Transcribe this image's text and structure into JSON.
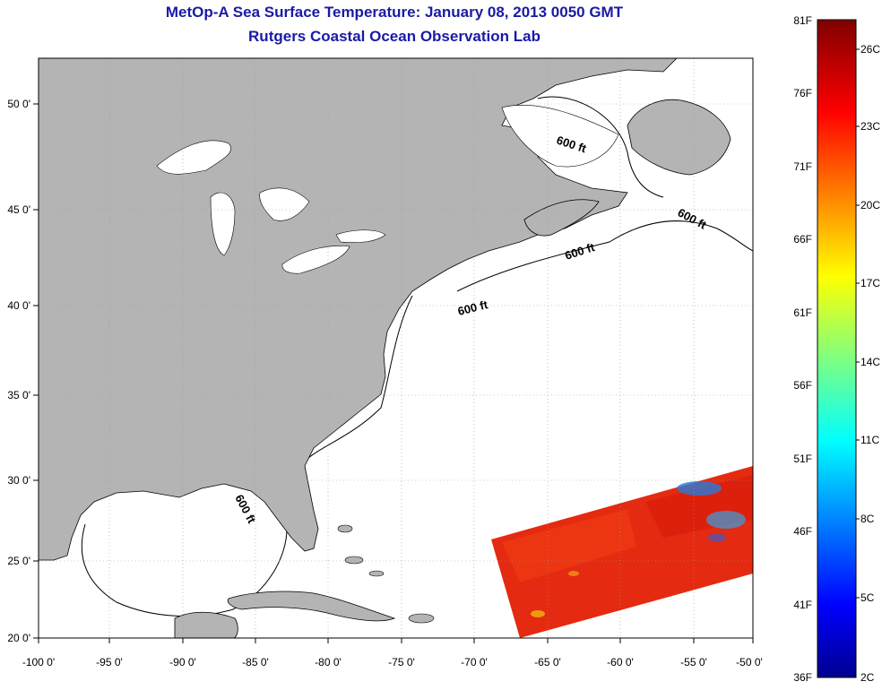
{
  "title": {
    "line1": "MetOp-A Sea Surface Temperature:  January 08, 2013 0050 GMT",
    "line2": "Rutgers Coastal Ocean Observation Lab"
  },
  "map": {
    "lon_labels": [
      "-100 0'",
      "-95 0'",
      "-90 0'",
      "-85 0'",
      "-80 0'",
      "-75 0'",
      "-70 0'",
      "-65 0'",
      "-60 0'",
      "-55 0'",
      "-50 0'"
    ],
    "lat_labels": [
      "50 0'",
      "45 0'",
      "40 0'",
      "35 0'",
      "30 0'",
      "25 0'",
      "20 0'"
    ],
    "isobath_label": "600 ft",
    "land_color": "#b4b4b4",
    "ocean_color": "#ffffff"
  },
  "colorbar": {
    "f_labels": [
      "81F",
      "76F",
      "71F",
      "66F",
      "61F",
      "56F",
      "51F",
      "46F",
      "41F",
      "36F"
    ],
    "c_labels": [
      "26C",
      "23C",
      "20C",
      "17C",
      "14C",
      "11C",
      "8C",
      "5C",
      "2C"
    ],
    "colormap": [
      "#00008f",
      "#0000ff",
      "#00ffff",
      "#ffff00",
      "#ff0000",
      "#800000"
    ]
  }
}
